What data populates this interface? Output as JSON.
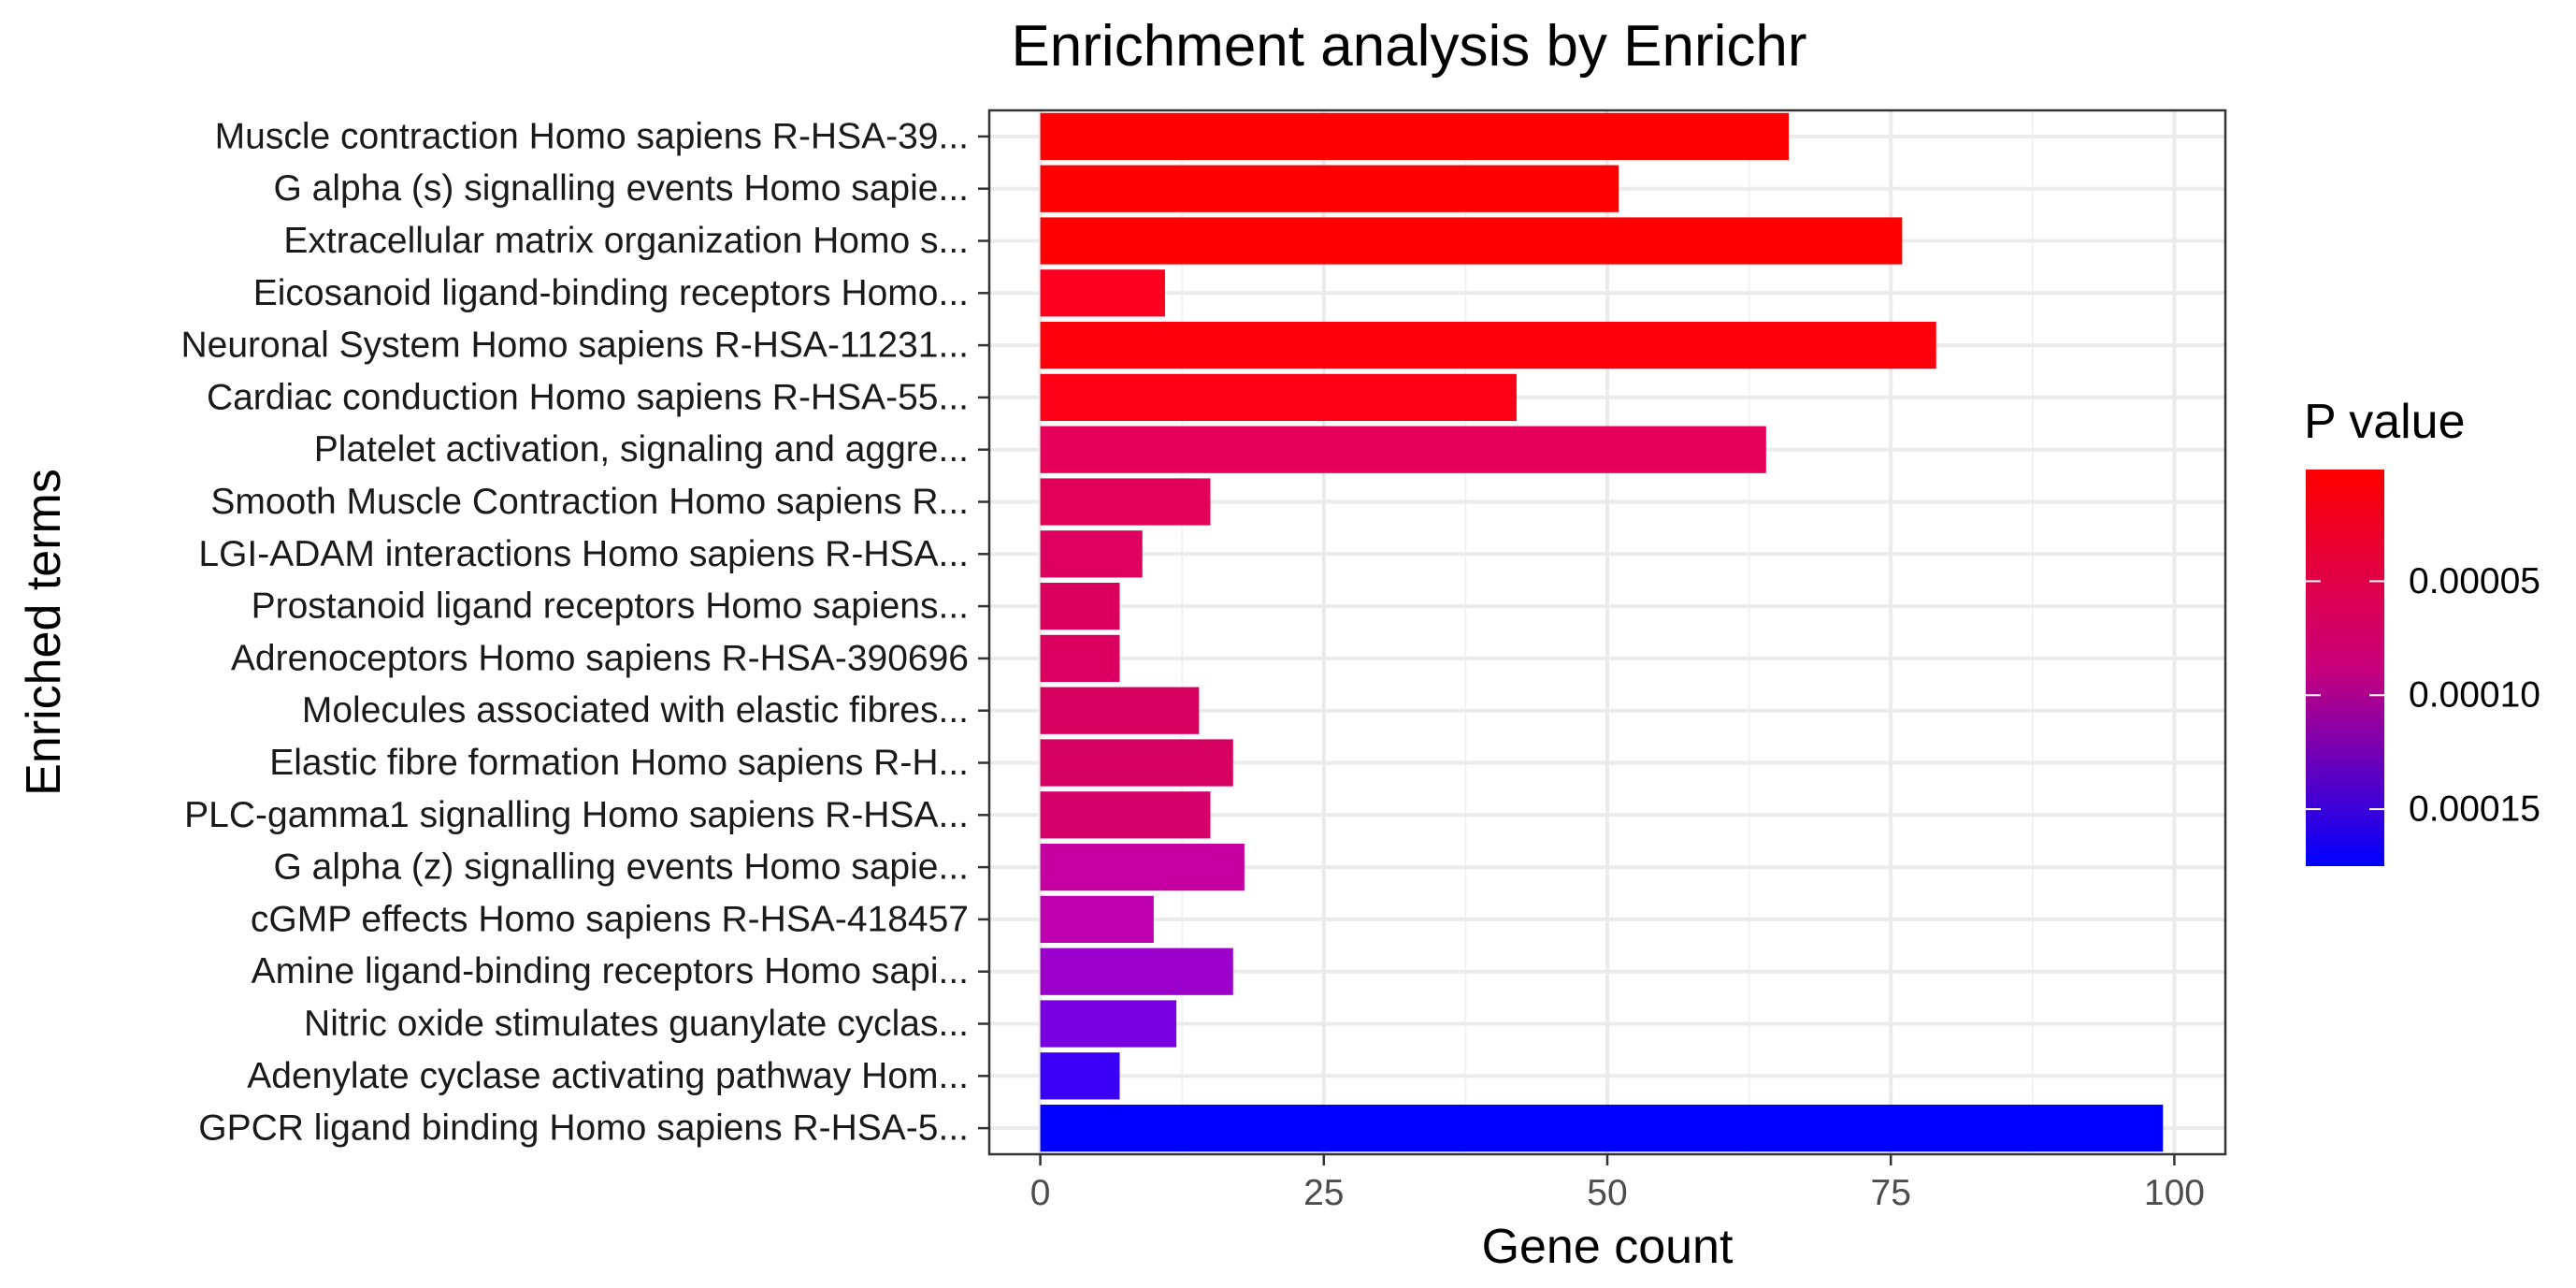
{
  "chart_data": {
    "type": "bar",
    "orientation": "horizontal",
    "title": "Enrichment analysis by Enrichr",
    "xlabel": "Gene count",
    "ylabel": "Enriched terms",
    "xlim": [
      -4.5,
      104.5
    ],
    "xticks": [
      "0",
      "25",
      "50",
      "75",
      "100"
    ],
    "grid": true,
    "legend": {
      "title": "P value",
      "position": "right",
      "tick_labels": [
        "0.00005",
        "0.00010",
        "0.00015"
      ],
      "tick_values": [
        5e-05,
        0.0001,
        0.00015
      ],
      "range": [
        1e-06,
        0.000175
      ],
      "low_color": "#ff0000",
      "high_color": "#0000ff"
    },
    "categories": [
      "Muscle contraction Homo sapiens R-HSA-39...",
      "G alpha (s) signalling events Homo sapie...",
      "Extracellular matrix organization Homo s...",
      "Eicosanoid ligand-binding receptors Homo...",
      "Neuronal System Homo sapiens R-HSA-11231...",
      "Cardiac conduction Homo sapiens R-HSA-55...",
      "Platelet activation, signaling and aggre...",
      "Smooth Muscle Contraction Homo sapiens R...",
      "LGI-ADAM interactions Homo sapiens R-HSA...",
      "Prostanoid ligand receptors Homo sapiens...",
      "Adrenoceptors Homo sapiens R-HSA-390696",
      "Molecules associated with elastic fibres...",
      "Elastic fibre formation Homo sapiens R-H...",
      "PLC-gamma1 signalling Homo sapiens R-HSA...",
      "G alpha (z) signalling events Homo sapie...",
      "cGMP effects Homo sapiens R-HSA-418457",
      "Amine ligand-binding receptors Homo sapi...",
      "Nitric oxide stimulates guanylate cyclas...",
      "Adenylate cyclase activating pathway Hom...",
      "GPCR ligand binding Homo sapiens R-HSA-5..."
    ],
    "values": [
      66,
      51,
      76,
      11,
      79,
      42,
      64,
      15,
      9,
      7,
      7,
      14,
      17,
      15,
      18,
      10,
      17,
      12,
      7,
      99
    ],
    "colors": [
      "#fe0000",
      "#fe0000",
      "#fe0000",
      "#fd0020",
      "#fd000c",
      "#fd0018",
      "#e6005a",
      "#e20058",
      "#dd005e",
      "#dc005e",
      "#db0060",
      "#d8005e",
      "#d50060",
      "#d5006a",
      "#c600a0",
      "#be00b0",
      "#9a00c9",
      "#7800e0",
      "#3a00f6",
      "#0000fe"
    ]
  }
}
